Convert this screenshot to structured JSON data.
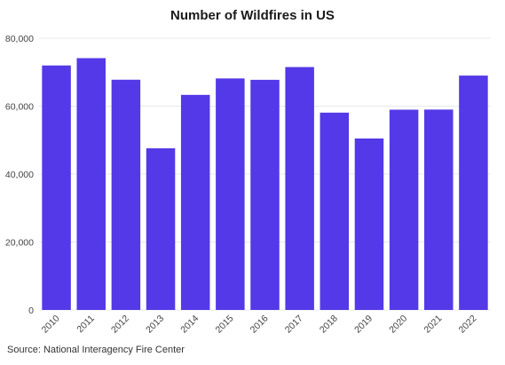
{
  "chart_data": {
    "type": "bar",
    "title": "Number of Wildfires in US",
    "xlabel": "",
    "ylabel": "",
    "categories": [
      "2010",
      "2011",
      "2012",
      "2013",
      "2014",
      "2015",
      "2016",
      "2017",
      "2018",
      "2019",
      "2020",
      "2021",
      "2022"
    ],
    "values": [
      71971,
      74126,
      67774,
      47579,
      63312,
      68151,
      67743,
      71499,
      58083,
      50477,
      58950,
      58985,
      68988
    ],
    "ylim": [
      0,
      80000
    ],
    "yticks": [
      0,
      20000,
      40000,
      60000,
      80000
    ],
    "ytick_labels": [
      "0",
      "20,000",
      "40,000",
      "60,000",
      "80,000"
    ],
    "grid": true,
    "legend": "none",
    "bar_color": "#5339e7",
    "grid_color": "#e8e8e8",
    "source": "Source: National Interagency Fire Center"
  }
}
